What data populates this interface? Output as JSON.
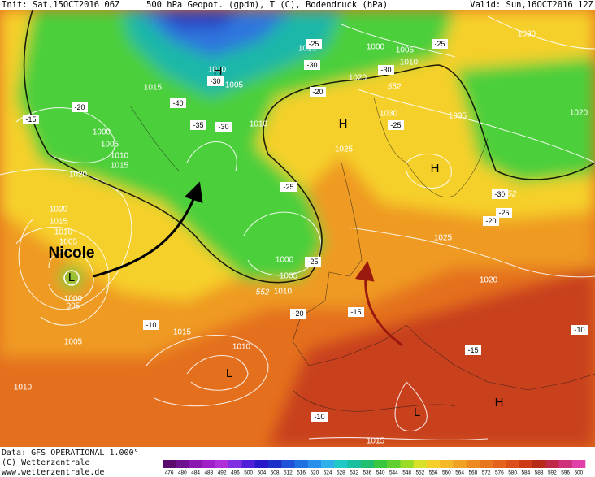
{
  "header": {
    "init": "Init: Sat,15OCT2016 06Z",
    "title": "500 hPa Geopot. (gpdm), T (C), Bodendruck (hPa)",
    "valid": "Valid: Sun,16OCT2016 12Z"
  },
  "map": {
    "isobar_labels": [
      "1015",
      "1000",
      "1005",
      "1010",
      "1030",
      "1010",
      "1005",
      "1010",
      "1015",
      "1020",
      "1030",
      "1035",
      "1025",
      "1020",
      "1000",
      "1005",
      "1010",
      "1015",
      "1020",
      "1020",
      "1015",
      "1010",
      "1005",
      "1000",
      "1005",
      "1010",
      "1025",
      "1020",
      "1005",
      "1015",
      "1010",
      "1010",
      "1015",
      "1000",
      "995"
    ],
    "temperature_labels": [
      "-20",
      "-15",
      "-40",
      "-35",
      "-30",
      "-25",
      "-20",
      "-30",
      "-25",
      "-30",
      "-25",
      "-25",
      "-30",
      "-25",
      "-20",
      "-25",
      "-20",
      "-15",
      "-10",
      "-10",
      "-15",
      "-10",
      "-30"
    ],
    "contour_labels": [
      "552",
      "552",
      "552"
    ],
    "pressure_centers": [
      "H",
      "H",
      "H",
      "H",
      "L",
      "L",
      "L"
    ],
    "storm_name": "Nicole"
  },
  "footer": {
    "data_source": "Data: GFS OPERATIONAL 1.000°",
    "copyright": "(C) Wetterzentrale",
    "url": "www.wetterzentrale.de"
  },
  "colorbar": {
    "labels": [
      476,
      480,
      484,
      488,
      492,
      496,
      500,
      504,
      508,
      512,
      516,
      520,
      524,
      528,
      532,
      536,
      540,
      544,
      548,
      552,
      556,
      560,
      564,
      568,
      572,
      576,
      580,
      584,
      588,
      592,
      596,
      600
    ]
  }
}
